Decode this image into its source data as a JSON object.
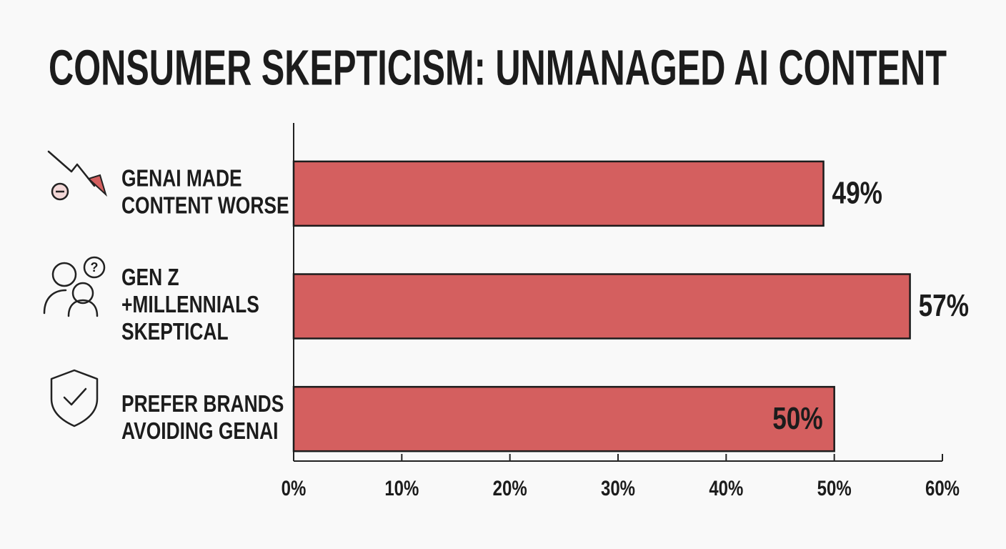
{
  "chart_data": {
    "type": "hbar",
    "title": "CONSUMER SKEPTICISM: UNMANAGED AI CONTENT",
    "categories": [
      [
        "GENAI MADE",
        "CONTENT WORSE"
      ],
      [
        "GEN Z",
        "+MILLENNIALS",
        "SKEPTICAL"
      ],
      [
        "PREFER BRANDS",
        "AVOIDING GENAI"
      ]
    ],
    "values": [
      49,
      57,
      50
    ],
    "value_labels": [
      "49%",
      "57%",
      "50%"
    ],
    "color": "#d45f5f",
    "xlim": [
      0,
      60
    ],
    "xticks": [
      {
        "value": 0,
        "label": "0%"
      },
      {
        "value": 10,
        "label": "10%"
      },
      {
        "value": 20,
        "label": "20%"
      },
      {
        "value": 30,
        "label": "30%"
      },
      {
        "value": 40,
        "label": "40%"
      },
      {
        "value": 50,
        "label": "50%"
      },
      {
        "value": 60,
        "label": "60%"
      }
    ],
    "grid": false
  }
}
